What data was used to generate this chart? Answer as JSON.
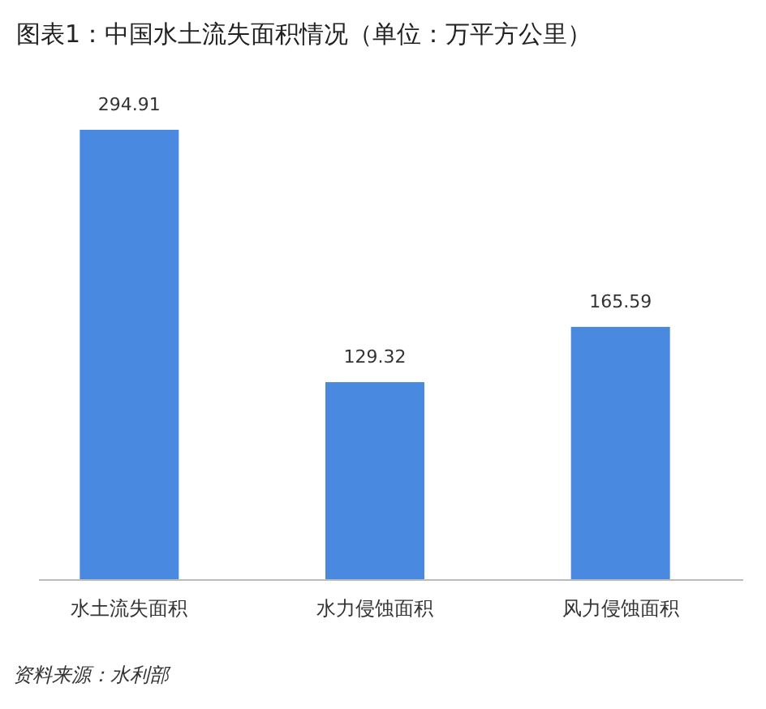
{
  "chart_data": {
    "type": "bar",
    "title": "图表1：中国水土流失面积情况（单位：万平方公里）",
    "categories": [
      "水土流失面积",
      "水力侵蚀面积",
      "风力侵蚀面积"
    ],
    "values": [
      294.91,
      129.32,
      165.59
    ],
    "color": "#4a89e0",
    "data_labels": true,
    "annotations": [
      "资料来源：水利部"
    ]
  }
}
